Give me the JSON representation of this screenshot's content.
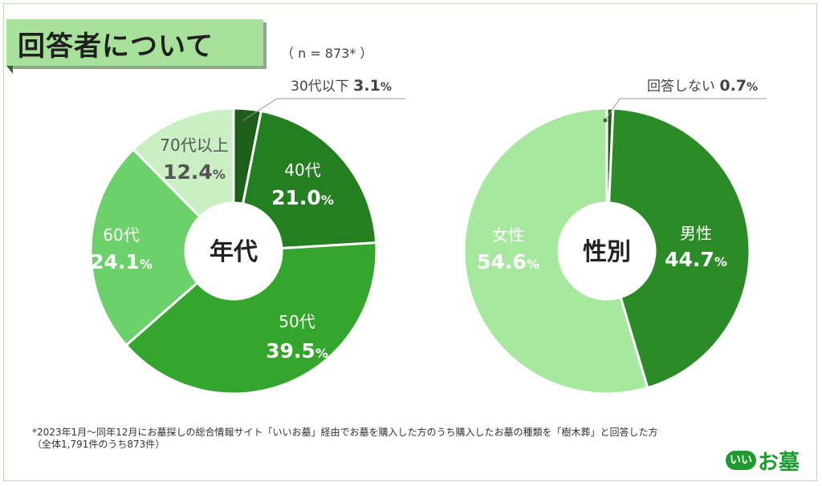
{
  "header": {
    "title": "回答者について",
    "sample": "（ n = 873* ）"
  },
  "chart_data": [
    {
      "type": "pie",
      "center_label": "年代",
      "slices": [
        {
          "label": "30代以下",
          "value": 3.1,
          "display": "3.1",
          "color": "#1d5e18"
        },
        {
          "label": "40代",
          "value": 21.0,
          "display": "21.0",
          "color": "#237f1f"
        },
        {
          "label": "50代",
          "value": 39.5,
          "display": "39.5",
          "color": "#34a62d"
        },
        {
          "label": "60代",
          "value": 24.1,
          "display": "24.1",
          "color": "#6cd16a"
        },
        {
          "label": "70代以上",
          "value": 12.4,
          "display": "12.4",
          "color": "#c9efc2"
        }
      ]
    },
    {
      "type": "pie",
      "center_label": "性別",
      "slices": [
        {
          "label": "回答しない",
          "value": 0.7,
          "display": "0.7",
          "color": "#1d5e18"
        },
        {
          "label": "男性",
          "value": 44.7,
          "display": "44.7",
          "color": "#2b8c27"
        },
        {
          "label": "女性",
          "value": 54.6,
          "display": "54.6",
          "color": "#a7e89f"
        }
      ]
    }
  ],
  "percent_sign": "%",
  "footnote": {
    "line1": "*2023年1月～同年12月にお墓探しの総合情報サイト「いいお墓」経由でお墓を購入した方のうち購入したお墓の種類を「樹木葬」と回答した方",
    "line2": "（全体1,791件のうち873件）"
  },
  "logo": {
    "badge": "いい",
    "word": "お墓"
  }
}
